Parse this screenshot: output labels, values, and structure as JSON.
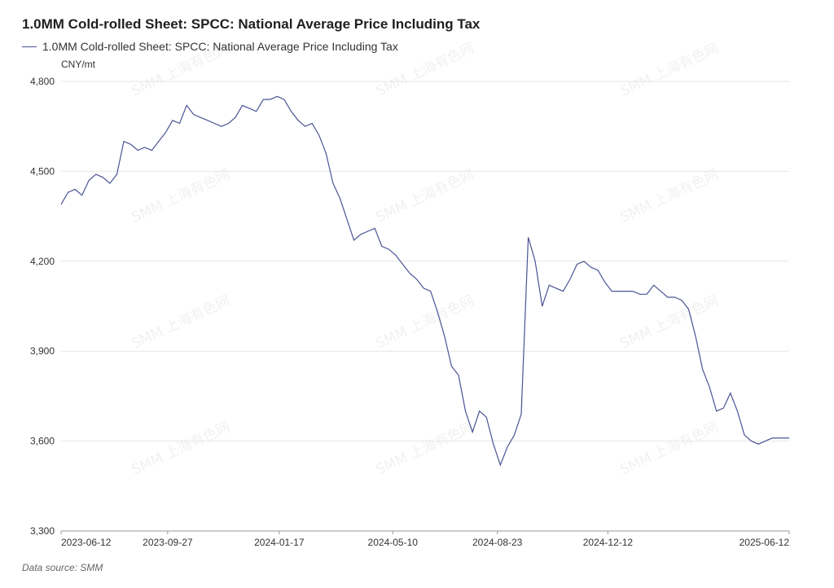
{
  "header": {
    "title": "1.0MM Cold-rolled Sheet: SPCC: National Average Price Including Tax",
    "unit": "CNY/mt",
    "source": "Data source:  SMM",
    "watermark": "SMM 上海有色网"
  },
  "colors": {
    "line": "#4a5494",
    "grid": "#e6e6e6",
    "axis": "#999999"
  },
  "chart_data": {
    "type": "line",
    "title": "1.0MM Cold-rolled Sheet: SPCC: National Average Price Including Tax",
    "ylabel": "CNY/mt",
    "xlabel": "",
    "ylim": [
      3300,
      4800
    ],
    "yticks": [
      3300,
      3600,
      3900,
      4200,
      4500,
      4800
    ],
    "ytick_labels": [
      "3,300",
      "3,600",
      "3,900",
      "4,200",
      "4,500",
      "4,800"
    ],
    "xlim": [
      "2023-06-12",
      "2025-06-12"
    ],
    "xticks": [
      "2023-06-12",
      "2023-09-27",
      "2024-01-17",
      "2024-05-10",
      "2024-08-23",
      "2024-12-12",
      "2025-06-12"
    ],
    "grid": true,
    "legend": "top-left",
    "series": [
      {
        "name": "1.0MM Cold-rolled Sheet: SPCC: National Average Price Including Tax",
        "x": [
          "2023-06-12",
          "2023-06-19",
          "2023-06-26",
          "2023-07-03",
          "2023-07-10",
          "2023-07-17",
          "2023-07-24",
          "2023-07-31",
          "2023-08-07",
          "2023-08-14",
          "2023-08-21",
          "2023-08-28",
          "2023-09-04",
          "2023-09-11",
          "2023-09-18",
          "2023-09-25",
          "2023-10-02",
          "2023-10-09",
          "2023-10-16",
          "2023-10-23",
          "2023-10-30",
          "2023-11-06",
          "2023-11-13",
          "2023-11-20",
          "2023-11-27",
          "2023-12-04",
          "2023-12-11",
          "2023-12-18",
          "2023-12-25",
          "2024-01-01",
          "2024-01-08",
          "2024-01-15",
          "2024-01-22",
          "2024-01-29",
          "2024-02-05",
          "2024-02-12",
          "2024-02-19",
          "2024-02-26",
          "2024-03-04",
          "2024-03-11",
          "2024-03-18",
          "2024-03-25",
          "2024-04-01",
          "2024-04-08",
          "2024-04-15",
          "2024-04-22",
          "2024-04-29",
          "2024-05-06",
          "2024-05-13",
          "2024-05-20",
          "2024-05-27",
          "2024-06-03",
          "2024-06-10",
          "2024-06-17",
          "2024-06-24",
          "2024-07-01",
          "2024-07-08",
          "2024-07-15",
          "2024-07-22",
          "2024-07-29",
          "2024-08-05",
          "2024-08-12",
          "2024-08-19",
          "2024-08-26",
          "2024-09-02",
          "2024-09-09",
          "2024-09-16",
          "2024-09-23",
          "2024-09-30",
          "2024-10-07",
          "2024-10-14",
          "2024-10-21",
          "2024-10-28",
          "2024-11-04",
          "2024-11-11",
          "2024-11-18",
          "2024-11-25",
          "2024-12-02",
          "2024-12-09",
          "2024-12-16",
          "2024-12-23",
          "2024-12-30",
          "2025-01-06",
          "2025-01-13",
          "2025-01-20",
          "2025-01-27",
          "2025-02-03",
          "2025-02-10",
          "2025-02-17",
          "2025-02-24",
          "2025-03-03",
          "2025-03-10",
          "2025-03-17",
          "2025-03-24",
          "2025-03-31",
          "2025-04-07",
          "2025-04-14",
          "2025-04-21",
          "2025-04-28",
          "2025-05-05",
          "2025-05-12",
          "2025-05-19",
          "2025-05-26",
          "2025-06-02",
          "2025-06-12"
        ],
        "values": [
          4390,
          4430,
          4440,
          4420,
          4470,
          4490,
          4480,
          4460,
          4490,
          4600,
          4590,
          4570,
          4580,
          4570,
          4600,
          4630,
          4670,
          4660,
          4720,
          4690,
          4680,
          4670,
          4660,
          4650,
          4660,
          4680,
          4720,
          4710,
          4700,
          4740,
          4740,
          4750,
          4740,
          4700,
          4670,
          4650,
          4660,
          4620,
          4560,
          4460,
          4410,
          4340,
          4270,
          4290,
          4300,
          4310,
          4250,
          4240,
          4220,
          4190,
          4160,
          4140,
          4110,
          4100,
          4030,
          3950,
          3850,
          3820,
          3700,
          3630,
          3700,
          3680,
          3590,
          3520,
          3580,
          3620,
          3690,
          4280,
          4200,
          4050,
          4120,
          4110,
          4100,
          4140,
          4190,
          4200,
          4180,
          4170,
          4130,
          4100,
          4100,
          4100,
          4100,
          4090,
          4090,
          4120,
          4100,
          4080,
          4080,
          4070,
          4040,
          3950,
          3840,
          3780,
          3700,
          3710,
          3760,
          3700,
          3620,
          3600,
          3590,
          3600,
          3610,
          3610,
          3610
        ]
      }
    ]
  }
}
